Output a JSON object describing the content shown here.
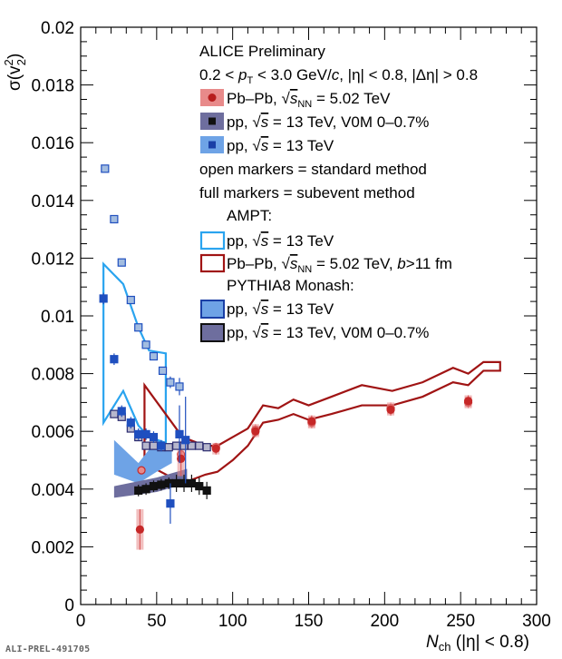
{
  "tag": "ALI-PREL-491705",
  "legend": {
    "header1": "ALICE Preliminary",
    "header2_pre": "0.2 < ",
    "header2_p": "p",
    "header2_T": "T",
    "header2_mid": " < 3.0 GeV/",
    "header2_c": "c",
    "header2_post": ", |η| < 0.8, |Δη| > 0.8",
    "entry_pbpb_a": "Pb–Pb, ",
    "entry_pbpb_s": "s",
    "entry_pbpb_nn": "NN",
    "entry_pbpb_b": " = 5.02 TeV",
    "entry_pp_a": "pp, ",
    "entry_pp_s": "s",
    "entry_pp_v0m_b": " = 13 TeV, V0M 0–0.7%",
    "entry_pp_b": " = 13 TeV",
    "note_open": "open markers = standard method",
    "note_full": "full markers = subevent method",
    "ampt": "AMPT:",
    "ampt_pbpb_b": " = 5.02 TeV, ",
    "ampt_pbpb_bb": "b",
    "ampt_pbpb_c": ">11 fm",
    "pythia": "PYTHIA8 Monash:"
  },
  "axes": {
    "xlabel_N": "N",
    "xlabel_sub": "ch",
    "xlabel_rest": " (|η| < 0.8)",
    "ylabel_sigma": "σ(v",
    "ylabel_sup": "2",
    "ylabel_sub": "2",
    "ylabel_close": ")"
  },
  "colors": {
    "pbpb": "#c62828",
    "pp_v0m": "#2a2a6e",
    "pp": "#1f4fbf",
    "pp_open_fill": "#a3bde0",
    "ampt_pp": "#2aa4ef",
    "ampt_pbpb": "#a01414",
    "pythia_pp_band": "#6ea3e6",
    "pythia_v0m_band": "#6e6e9e"
  },
  "chart_data": {
    "type": "scatter",
    "xlim": [
      0,
      300
    ],
    "ylim": [
      0,
      0.02
    ],
    "xticks": [
      0,
      50,
      100,
      150,
      200,
      250,
      300
    ],
    "yticks": [
      0,
      0.002,
      0.004,
      0.006,
      0.008,
      0.01,
      0.012,
      0.014,
      0.016,
      0.018,
      0.02
    ],
    "xtick_labels": [
      "0",
      "50",
      "100",
      "150",
      "200",
      "250",
      "300"
    ],
    "ytick_labels": [
      "0",
      "0.002",
      "0.004",
      "0.006",
      "0.008",
      "0.01",
      "0.012",
      "0.014",
      "0.016",
      "0.018",
      "0.02"
    ],
    "grid": false,
    "legend_position": "top-right",
    "series": [
      {
        "name": "Pb–Pb, √sNN = 5.02 TeV (standard)",
        "style": "open-circle",
        "points": [
          [
            40,
            0.00465,
            0.0001
          ],
          [
            66,
            0.0052,
            0.0001
          ],
          [
            89,
            0.00545,
            0.0001
          ],
          [
            115,
            0.00605,
            0.0002
          ],
          [
            152,
            0.0063,
            0.0002
          ],
          [
            204,
            0.0068,
            0.0002
          ],
          [
            255,
            0.007,
            0.0002
          ]
        ]
      },
      {
        "name": "Pb–Pb, √sNN = 5.02 TeV (subevent)",
        "style": "full-circle",
        "points": [
          [
            39,
            0.0026,
            0.0007
          ],
          [
            66,
            0.00505,
            0.0006
          ],
          [
            89,
            0.0054,
            0.0002
          ],
          [
            115,
            0.006,
            0.0002
          ],
          [
            152,
            0.00635,
            0.0002
          ],
          [
            204,
            0.00675,
            0.0002
          ],
          [
            255,
            0.00705,
            0.0002
          ]
        ]
      },
      {
        "name": "pp, √s = 13 TeV, V0M 0–0.7% (standard)",
        "style": "open-square",
        "points": [
          [
            22,
            0.0066,
            0.0001
          ],
          [
            27,
            0.0065,
            0.0001
          ],
          [
            33,
            0.0061,
            0.0001
          ],
          [
            38,
            0.0058,
            0.0001
          ],
          [
            43,
            0.0055,
            0.0001
          ],
          [
            48,
            0.0055,
            0.0001
          ],
          [
            53,
            0.00545,
            0.0001
          ],
          [
            58,
            0.00545,
            0.0001
          ],
          [
            63,
            0.0055,
            0.0001
          ],
          [
            68,
            0.0055,
            0.0001
          ],
          [
            73,
            0.0055,
            0.0001
          ],
          [
            78,
            0.0055,
            0.0001
          ],
          [
            83,
            0.00545,
            0.0001
          ]
        ]
      },
      {
        "name": "pp, √s = 13 TeV, V0M 0–0.7% (subevent)",
        "style": "full-square",
        "points": [
          [
            38,
            0.00395,
            0.0002
          ],
          [
            43,
            0.004,
            0.0002
          ],
          [
            48,
            0.0041,
            0.0002
          ],
          [
            53,
            0.00415,
            0.0002
          ],
          [
            58,
            0.0042,
            0.0002
          ],
          [
            63,
            0.0042,
            0.0003
          ],
          [
            68,
            0.0042,
            0.0003
          ],
          [
            73,
            0.0042,
            0.0003
          ],
          [
            78,
            0.0041,
            0.0003
          ],
          [
            83,
            0.00395,
            0.0003
          ]
        ]
      },
      {
        "name": "pp, √s = 13 TeV (standard)",
        "style": "open-square",
        "points": [
          [
            16,
            0.0151,
            0.0001
          ],
          [
            22,
            0.01335,
            0.0001
          ],
          [
            27,
            0.01185,
            0.0001
          ],
          [
            33,
            0.01055,
            0.0001
          ],
          [
            38,
            0.0096,
            0.0001
          ],
          [
            43,
            0.009,
            0.0001
          ],
          [
            48,
            0.0086,
            0.0001
          ],
          [
            54,
            0.0081,
            0.0001
          ],
          [
            59,
            0.0077,
            0.0002
          ],
          [
            65,
            0.00755,
            0.0003
          ]
        ]
      },
      {
        "name": "pp, √s = 13 TeV (subevent)",
        "style": "full-square",
        "points": [
          [
            15,
            0.0106,
            0.0002
          ],
          [
            22,
            0.0085,
            0.0002
          ],
          [
            27,
            0.0067,
            0.0002
          ],
          [
            33,
            0.0063,
            0.0002
          ],
          [
            38,
            0.0059,
            0.0002
          ],
          [
            43,
            0.0059,
            0.0002
          ],
          [
            48,
            0.0058,
            0.0002
          ],
          [
            53,
            0.0055,
            0.0002
          ],
          [
            59,
            0.0035,
            0.0007
          ],
          [
            65,
            0.0059,
            0.001
          ],
          [
            69,
            0.0057,
            0.0015
          ]
        ]
      },
      {
        "name": "AMPT pp, √s = 13 TeV",
        "style": "band-outline",
        "upper": [
          [
            15,
            0.0118
          ],
          [
            28,
            0.0111
          ],
          [
            38,
            0.0096
          ],
          [
            45,
            0.0088
          ],
          [
            56,
            0.0087
          ]
        ],
        "lower": [
          [
            15,
            0.0063
          ],
          [
            28,
            0.0074
          ],
          [
            38,
            0.0062
          ],
          [
            45,
            0.0058
          ],
          [
            56,
            0.0056
          ]
        ]
      },
      {
        "name": "AMPT Pb–Pb, √sNN = 5.02 TeV, b>11 fm",
        "style": "band-outline",
        "upper": [
          [
            42,
            0.0076
          ],
          [
            67,
            0.0058
          ],
          [
            82,
            0.0055
          ],
          [
            90,
            0.0055
          ],
          [
            100,
            0.0058
          ],
          [
            110,
            0.0061
          ],
          [
            120,
            0.0069
          ],
          [
            130,
            0.0068
          ],
          [
            140,
            0.0071
          ],
          [
            150,
            0.0069
          ],
          [
            165,
            0.0072
          ],
          [
            185,
            0.0076
          ],
          [
            205,
            0.0074
          ],
          [
            225,
            0.0077
          ],
          [
            245,
            0.0082
          ],
          [
            255,
            0.008
          ],
          [
            265,
            0.0084
          ],
          [
            276,
            0.0084
          ]
        ],
        "lower": [
          [
            42,
            0.0049
          ],
          [
            67,
            0.0042
          ],
          [
            82,
            0.0045
          ],
          [
            90,
            0.0046
          ],
          [
            100,
            0.005
          ],
          [
            110,
            0.0055
          ],
          [
            120,
            0.0063
          ],
          [
            130,
            0.0064
          ],
          [
            140,
            0.0066
          ],
          [
            150,
            0.0064
          ],
          [
            165,
            0.0066
          ],
          [
            185,
            0.0069
          ],
          [
            205,
            0.0069
          ],
          [
            225,
            0.0072
          ],
          [
            245,
            0.0077
          ],
          [
            255,
            0.0076
          ],
          [
            265,
            0.0081
          ],
          [
            276,
            0.0081
          ]
        ]
      },
      {
        "name": "PYTHIA8 Monash pp, √s = 13 TeV",
        "style": "band-fill",
        "upper": [
          [
            22,
            0.0057
          ],
          [
            38,
            0.0049
          ],
          [
            50,
            0.0057
          ],
          [
            60,
            0.0054
          ]
        ],
        "lower": [
          [
            22,
            0.0045
          ],
          [
            38,
            0.0042
          ],
          [
            50,
            0.0046
          ],
          [
            60,
            0.0049
          ]
        ]
      },
      {
        "name": "PYTHIA8 Monash pp, √s = 13 TeV, V0M 0–0.7%",
        "style": "band-fill",
        "upper": [
          [
            22,
            0.0041
          ],
          [
            50,
            0.0044
          ],
          [
            70,
            0.0047
          ]
        ],
        "lower": [
          [
            22,
            0.0037
          ],
          [
            50,
            0.0039
          ],
          [
            70,
            0.0042
          ]
        ]
      }
    ]
  }
}
